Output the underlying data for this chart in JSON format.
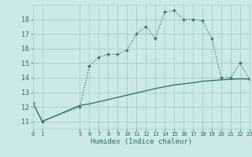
{
  "xlabel": "Humidex (Indice chaleur)",
  "bg_color": "#cce8e8",
  "grid_color": "#a8cccc",
  "line_color": "#2a6e5e",
  "xlim": [
    0,
    23
  ],
  "ylim": [
    10.5,
    19.0
  ],
  "xticks": [
    0,
    1,
    5,
    6,
    7,
    8,
    9,
    10,
    11,
    12,
    13,
    14,
    15,
    16,
    17,
    18,
    19,
    20,
    21,
    22,
    23
  ],
  "yticks": [
    11,
    12,
    13,
    14,
    15,
    16,
    17,
    18
  ],
  "line1_x": [
    0,
    1,
    5,
    6,
    7,
    8,
    9,
    10,
    11,
    12,
    13,
    14,
    15,
    16,
    17,
    18,
    19,
    20,
    21,
    22,
    23
  ],
  "line1_y": [
    12.3,
    11.0,
    12.0,
    14.8,
    15.4,
    15.6,
    15.6,
    15.9,
    17.0,
    17.5,
    16.7,
    18.5,
    18.6,
    18.0,
    18.0,
    17.9,
    16.7,
    14.0,
    14.0,
    15.0,
    13.9
  ],
  "line2_x": [
    0,
    1,
    5,
    6,
    7,
    8,
    9,
    10,
    11,
    12,
    13,
    14,
    15,
    16,
    17,
    18,
    19,
    20,
    21,
    22,
    23
  ],
  "line2_y": [
    12.3,
    11.0,
    12.1,
    12.2,
    12.35,
    12.5,
    12.65,
    12.8,
    12.95,
    13.1,
    13.25,
    13.38,
    13.5,
    13.58,
    13.65,
    13.75,
    13.8,
    13.85,
    13.88,
    13.92,
    13.9
  ]
}
